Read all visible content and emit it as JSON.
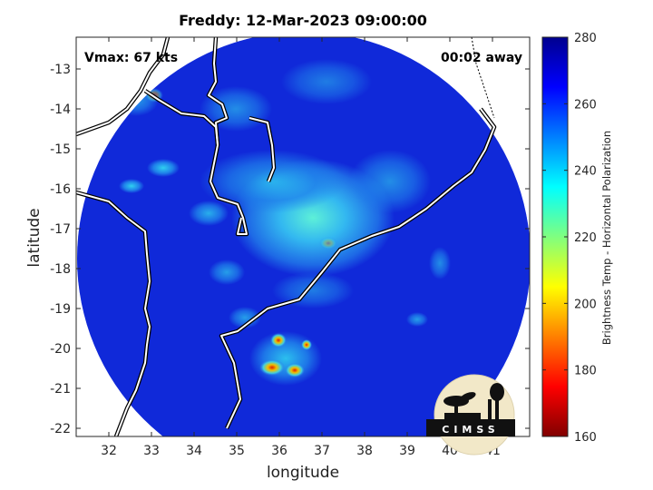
{
  "map": {
    "title": "Freddy: 12-Mar-2023 09:00:00",
    "xlabel": "longitude",
    "ylabel": "latitude",
    "vmax_text": "Vmax: 67 kts",
    "away_text": "00:02 away",
    "x_ticks": [
      "32",
      "33",
      "34",
      "35",
      "36",
      "37",
      "38",
      "39",
      "40",
      "41"
    ],
    "y_ticks": [
      "-13",
      "-14",
      "-15",
      "-16",
      "-17",
      "-18",
      "-19",
      "-20",
      "-21",
      "-22"
    ]
  },
  "colorbar": {
    "label": "Brightness Temp - Horizontal Polarization",
    "ticks": [
      "280",
      "260",
      "240",
      "220",
      "200",
      "180",
      "160"
    ],
    "colormap": "jet",
    "range": [
      160,
      280
    ]
  },
  "logo": {
    "text": "CIMSS"
  },
  "colors": {
    "background_field": "#0b1fd6",
    "outside_swath": "#ffffff",
    "coastline": "#ffffff"
  }
}
